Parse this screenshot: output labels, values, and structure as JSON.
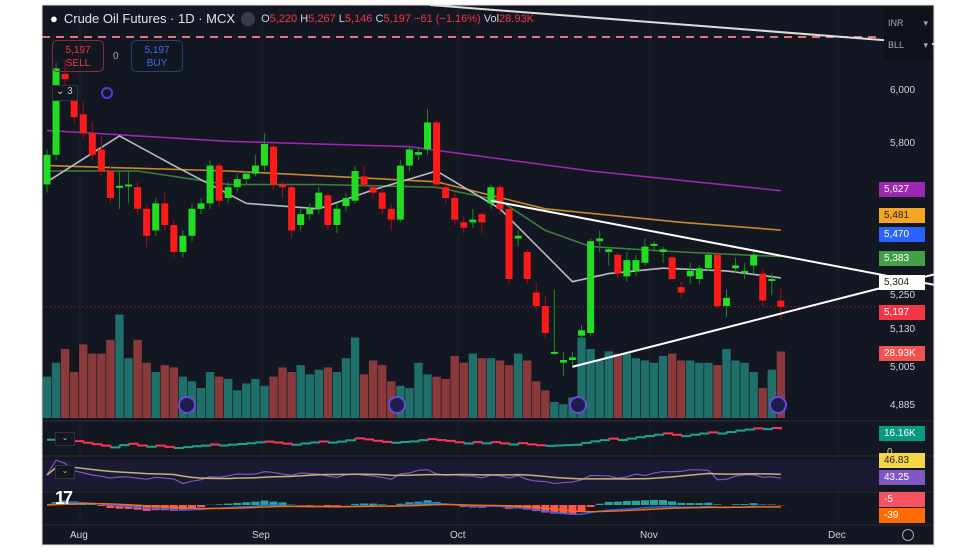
{
  "header": {
    "symbol": "Crude Oil Futures · 1D · MCX",
    "open_label": "O",
    "open": "5,220",
    "high_label": "H",
    "high": "5,267",
    "low_label": "L",
    "low": "5,146",
    "close_label": "C",
    "close": "5,197",
    "change": "−61 (−1.16%)",
    "vol_label": "Vol",
    "vol": "28.93K"
  },
  "trade": {
    "sell_price": "5,197",
    "sell_label": "SELL",
    "spread": "0",
    "buy_price": "5,197",
    "buy_label": "BUY"
  },
  "indicators_toggle": "3",
  "unit_menu": {
    "currency": "INR",
    "unit": "BLL"
  },
  "price_axis": [
    "6,000",
    "5,800",
    "5,250",
    "5,130",
    "5,005",
    "4,885"
  ],
  "badges": [
    {
      "text": "5,627",
      "color": "#9c27b0"
    },
    {
      "text": "5,481",
      "color": "#f5a623"
    },
    {
      "text": "5,470",
      "color": "#2962ff"
    },
    {
      "text": "5,383",
      "color": "#43a047"
    },
    {
      "text": "5,304",
      "color": "#ffffff"
    },
    {
      "text": "5,197",
      "color": "#f23645"
    },
    {
      "text": "28.93K",
      "color": "#ef5350"
    },
    {
      "text": "16.16K",
      "color": "#089981"
    },
    {
      "text": "0",
      "color": "none"
    },
    {
      "text": "46.83",
      "color": "#f5d547"
    },
    {
      "text": "43.25",
      "color": "#7e57c2"
    },
    {
      "text": "-5",
      "color": "#f7525f"
    },
    {
      "text": "-39",
      "color": "#ff6d00"
    }
  ],
  "time_axis": [
    "Aug",
    "Sep",
    "Oct",
    "Nov",
    "Dec"
  ],
  "colors": {
    "up": "#22dd22",
    "down": "#ff1a1a",
    "vol_up": "#1f6f6a",
    "vol_down": "#8a3a3a",
    "bg": "#131722"
  },
  "chart_data": {
    "type": "candlestick",
    "ylim": [
      4885,
      6000
    ],
    "ohlc": [
      [
        5650,
        5780,
        5620,
        5760
      ],
      [
        5760,
        6100,
        5740,
        6080
      ],
      [
        6060,
        6110,
        6020,
        6040
      ],
      [
        5980,
        6000,
        5880,
        5900
      ],
      [
        5910,
        5960,
        5820,
        5840
      ],
      [
        5840,
        5880,
        5740,
        5760
      ],
      [
        5780,
        5830,
        5680,
        5700
      ],
      [
        5700,
        5720,
        5580,
        5600
      ],
      [
        5640,
        5700,
        5560,
        5645
      ],
      [
        5650,
        5700,
        5580,
        5650
      ],
      [
        5640,
        5660,
        5540,
        5560
      ],
      [
        5560,
        5580,
        5420,
        5460
      ],
      [
        5480,
        5600,
        5460,
        5580
      ],
      [
        5580,
        5620,
        5480,
        5500
      ],
      [
        5500,
        5520,
        5380,
        5400
      ],
      [
        5400,
        5480,
        5380,
        5460
      ],
      [
        5460,
        5580,
        5440,
        5560
      ],
      [
        5560,
        5600,
        5540,
        5580
      ],
      [
        5580,
        5740,
        5560,
        5720
      ],
      [
        5720,
        5730,
        5570,
        5590
      ],
      [
        5600,
        5660,
        5580,
        5640
      ],
      [
        5640,
        5690,
        5620,
        5670
      ],
      [
        5670,
        5700,
        5650,
        5690
      ],
      [
        5690,
        5760,
        5680,
        5720
      ],
      [
        5720,
        5840,
        5700,
        5800
      ],
      [
        5790,
        5810,
        5630,
        5650
      ],
      [
        5650,
        5660,
        5600,
        5640
      ],
      [
        5640,
        5650,
        5450,
        5480
      ],
      [
        5500,
        5560,
        5480,
        5540
      ],
      [
        5540,
        5580,
        5520,
        5560
      ],
      [
        5560,
        5640,
        5540,
        5620
      ],
      [
        5610,
        5620,
        5480,
        5500
      ],
      [
        5500,
        5580,
        5470,
        5560
      ],
      [
        5570,
        5620,
        5550,
        5600
      ],
      [
        5590,
        5720,
        5580,
        5700
      ],
      [
        5680,
        5720,
        5640,
        5650
      ],
      [
        5640,
        5650,
        5600,
        5620
      ],
      [
        5620,
        5640,
        5540,
        5560
      ],
      [
        5560,
        5580,
        5480,
        5520
      ],
      [
        5520,
        5740,
        5510,
        5720
      ],
      [
        5720,
        5790,
        5700,
        5780
      ],
      [
        5760,
        5790,
        5740,
        5770
      ],
      [
        5780,
        5930,
        5760,
        5880
      ],
      [
        5880,
        5890,
        5630,
        5650
      ],
      [
        5640,
        5660,
        5580,
        5600
      ],
      [
        5600,
        5620,
        5500,
        5520
      ],
      [
        5510,
        5530,
        5470,
        5490
      ],
      [
        5510,
        5560,
        5490,
        5520
      ],
      [
        5540,
        5550,
        5470,
        5510
      ],
      [
        5580,
        5650,
        5560,
        5640
      ],
      [
        5640,
        5650,
        5540,
        5560
      ],
      [
        5560,
        5570,
        5280,
        5300
      ],
      [
        5450,
        5480,
        5420,
        5460
      ],
      [
        5400,
        5410,
        5280,
        5300
      ],
      [
        5250,
        5290,
        5180,
        5200
      ],
      [
        5200,
        5240,
        5080,
        5100
      ],
      [
        5030,
        5260,
        5020,
        5030
      ],
      [
        4990,
        5030,
        4940,
        5000
      ],
      [
        5000,
        5030,
        4980,
        5010
      ],
      [
        5090,
        5130,
        5080,
        5110
      ],
      [
        5100,
        5450,
        5090,
        5440
      ],
      [
        5440,
        5480,
        5400,
        5450
      ],
      [
        5400,
        5420,
        5350,
        5410
      ],
      [
        5390,
        5400,
        5300,
        5320
      ],
      [
        5310,
        5400,
        5290,
        5370
      ],
      [
        5330,
        5390,
        5310,
        5370
      ],
      [
        5360,
        5450,
        5350,
        5420
      ],
      [
        5430,
        5440,
        5400,
        5430
      ],
      [
        5400,
        5420,
        5360,
        5410
      ],
      [
        5380,
        5390,
        5300,
        5300
      ],
      [
        5270,
        5290,
        5230,
        5250
      ],
      [
        5310,
        5360,
        5280,
        5330
      ],
      [
        5300,
        5350,
        5280,
        5340
      ],
      [
        5340,
        5400,
        5330,
        5390
      ],
      [
        5390,
        5400,
        5190,
        5200
      ],
      [
        5200,
        5260,
        5160,
        5230
      ],
      [
        5340,
        5380,
        5320,
        5350
      ],
      [
        5330,
        5360,
        5300,
        5330
      ],
      [
        5350,
        5400,
        5320,
        5390
      ],
      [
        5320,
        5340,
        5200,
        5220
      ],
      [
        5300,
        5320,
        5240,
        5300
      ],
      [
        5220,
        5267,
        5146,
        5197
      ]
    ],
    "volume_k": [
      18,
      24,
      30,
      20,
      32,
      28,
      28,
      34,
      45,
      26,
      34,
      24,
      20,
      23,
      22,
      18,
      16,
      13,
      20,
      18,
      17,
      12,
      15,
      17,
      14,
      18,
      22,
      20,
      23,
      19,
      21,
      22,
      20,
      26,
      35,
      19,
      25,
      23,
      16,
      14,
      13,
      24,
      19,
      18,
      17,
      27,
      24,
      28,
      26,
      26,
      25,
      23,
      28,
      25,
      16,
      12,
      7,
      6,
      9,
      35,
      30,
      25,
      29,
      28,
      28,
      26,
      25,
      24,
      27,
      28,
      25,
      25,
      24,
      24,
      23,
      30,
      25,
      24,
      20,
      13,
      21,
      28.93
    ],
    "moving_averages": [
      {
        "color": "#9c27b0",
        "points": [
          [
            0,
            5850
          ],
          [
            20,
            5810
          ],
          [
            40,
            5790
          ],
          [
            60,
            5700
          ],
          [
            81,
            5627
          ]
        ]
      },
      {
        "color": "#c8892a",
        "points": [
          [
            0,
            5720
          ],
          [
            20,
            5700
          ],
          [
            43,
            5660
          ],
          [
            55,
            5560
          ],
          [
            70,
            5510
          ],
          [
            81,
            5481
          ]
        ]
      },
      {
        "color": "#3f7d3f",
        "points": [
          [
            0,
            5700
          ],
          [
            10,
            5700
          ],
          [
            20,
            5650
          ],
          [
            30,
            5650
          ],
          [
            43,
            5640
          ],
          [
            50,
            5590
          ],
          [
            55,
            5480
          ],
          [
            60,
            5420
          ],
          [
            70,
            5400
          ],
          [
            81,
            5383
          ]
        ]
      },
      {
        "color": "#b8bcc4",
        "points": [
          [
            0,
            5660
          ],
          [
            8,
            5830
          ],
          [
            14,
            5720
          ],
          [
            22,
            5580
          ],
          [
            30,
            5560
          ],
          [
            36,
            5630
          ],
          [
            43,
            5700
          ],
          [
            50,
            5560
          ],
          [
            58,
            5290
          ],
          [
            62,
            5320
          ],
          [
            68,
            5340
          ],
          [
            75,
            5330
          ],
          [
            81,
            5304
          ]
        ]
      }
    ],
    "trendlines": [
      {
        "color": "#ffffff",
        "from": [
          49,
          5590
        ],
        "to": [
          101,
          5259
        ]
      },
      {
        "color": "#ffffff",
        "from": [
          58,
          4975
        ],
        "to": [
          102,
          5352
        ]
      }
    ],
    "last_price_line": 5197
  }
}
